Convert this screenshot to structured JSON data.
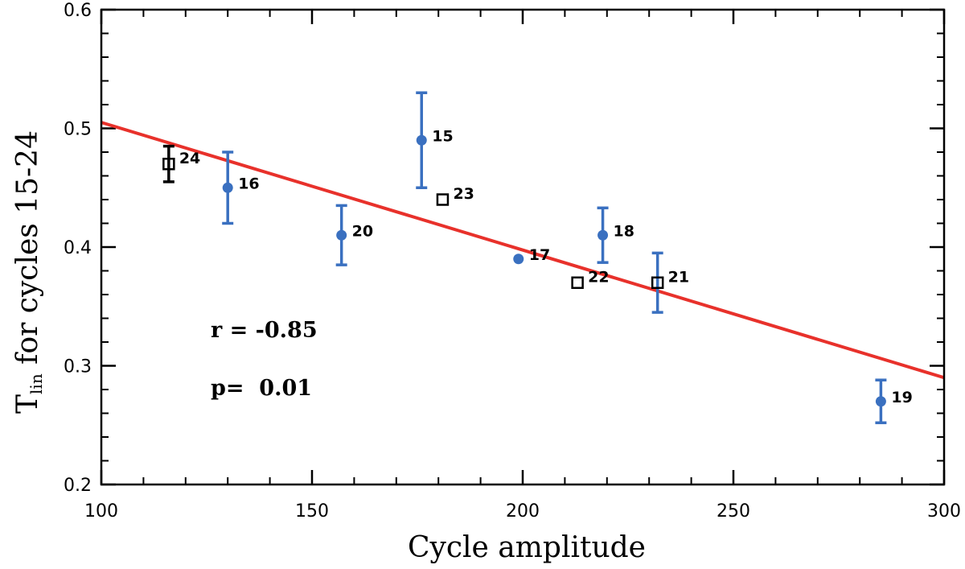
{
  "chart_data": {
    "type": "scatter",
    "xlabel": "Cycle amplitude",
    "ylabel_main": "T",
    "ylabel_sub": "lin",
    "ylabel_rest": " for cycles 15-24",
    "xlim": [
      100,
      300
    ],
    "ylim": [
      0.2,
      0.6
    ],
    "xticks": [
      100,
      150,
      200,
      250,
      300
    ],
    "yticks": [
      0.2,
      0.3,
      0.4,
      0.5,
      0.6
    ],
    "xtick_labels": [
      "100",
      "150",
      "200",
      "250",
      "300"
    ],
    "ytick_labels": [
      "0.2",
      "0.3",
      "0.4",
      "0.5",
      "0.6"
    ],
    "x_minor_step": 10,
    "y_minor_step": 0.02,
    "colors": {
      "circle": "#3a70c0",
      "fit": "#e8312b",
      "square": "#000000"
    },
    "points": [
      {
        "cycle": "15",
        "x": 176,
        "y": 0.49,
        "err": 0.04,
        "marker": "circle"
      },
      {
        "cycle": "16",
        "x": 130,
        "y": 0.45,
        "err": 0.03,
        "marker": "circle"
      },
      {
        "cycle": "17",
        "x": 199,
        "y": 0.39,
        "err": 0,
        "marker": "circle"
      },
      {
        "cycle": "18",
        "x": 219,
        "y": 0.41,
        "err": 0.023,
        "marker": "circle"
      },
      {
        "cycle": "19",
        "x": 285,
        "y": 0.27,
        "err": 0.018,
        "marker": "circle"
      },
      {
        "cycle": "20",
        "x": 157,
        "y": 0.41,
        "err": 0.025,
        "marker": "circle"
      },
      {
        "cycle": "21",
        "x": 232,
        "y": 0.37,
        "err": 0.025,
        "marker": "square"
      },
      {
        "cycle": "22",
        "x": 213,
        "y": 0.37,
        "err": 0,
        "marker": "square"
      },
      {
        "cycle": "23",
        "x": 181,
        "y": 0.44,
        "err": 0,
        "marker": "square"
      },
      {
        "cycle": "24",
        "x": 116,
        "y": 0.47,
        "err": 0.015,
        "marker": "square"
      }
    ],
    "fit_line": {
      "x": [
        100,
        300
      ],
      "y": [
        0.505,
        0.29
      ]
    },
    "stats": {
      "r_label": "r = -0.85",
      "p_label": "p=  0.01"
    }
  }
}
